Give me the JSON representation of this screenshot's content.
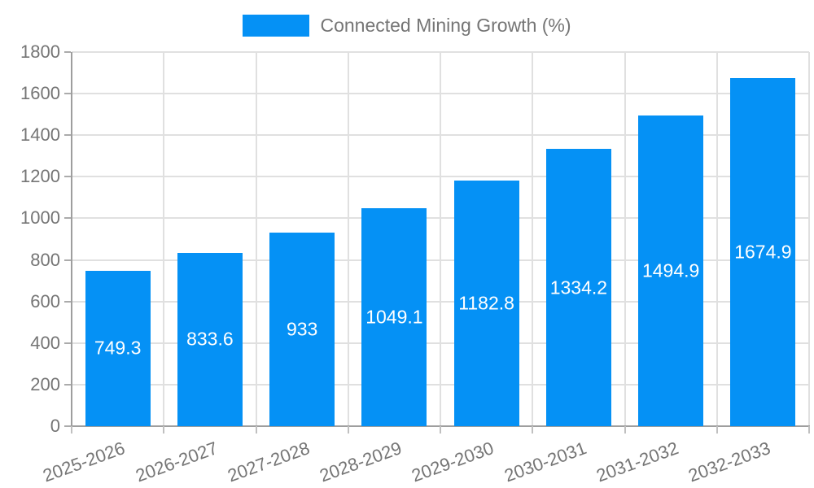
{
  "legend": {
    "label": "Connected Mining Growth (%)"
  },
  "colors": {
    "bar": "#0591F5",
    "axis_line": "#9e9e9e",
    "grid": "#e0e0e0",
    "tick_text": "#757575",
    "bar_label_text": "#ffffff",
    "background": "#ffffff"
  },
  "chart_data": {
    "type": "bar",
    "title": "",
    "xlabel": "",
    "ylabel": "",
    "categories": [
      "2025-2026",
      "2026-2027",
      "2027-2028",
      "2028-2029",
      "2029-2030",
      "2030-2031",
      "2031-2032",
      "2032-2033"
    ],
    "values": [
      749.3,
      833.6,
      933,
      1049.1,
      1182.8,
      1334.2,
      1494.9,
      1674.9
    ],
    "value_labels": [
      "749.3",
      "833.6",
      "933",
      "1049.1",
      "1182.8",
      "1334.2",
      "1494.9",
      "1674.9"
    ],
    "ytick_labels": [
      "0",
      "200",
      "400",
      "600",
      "800",
      "1000",
      "1200",
      "1400",
      "1600",
      "1800"
    ],
    "ylim": [
      0,
      1800
    ],
    "ytick_step": 200,
    "grid": true,
    "legend_position": "top-center",
    "legend_entries": [
      "Connected Mining Growth (%)"
    ],
    "xtick_label_rotation_deg": -20,
    "value_label_position": "inside-center"
  }
}
